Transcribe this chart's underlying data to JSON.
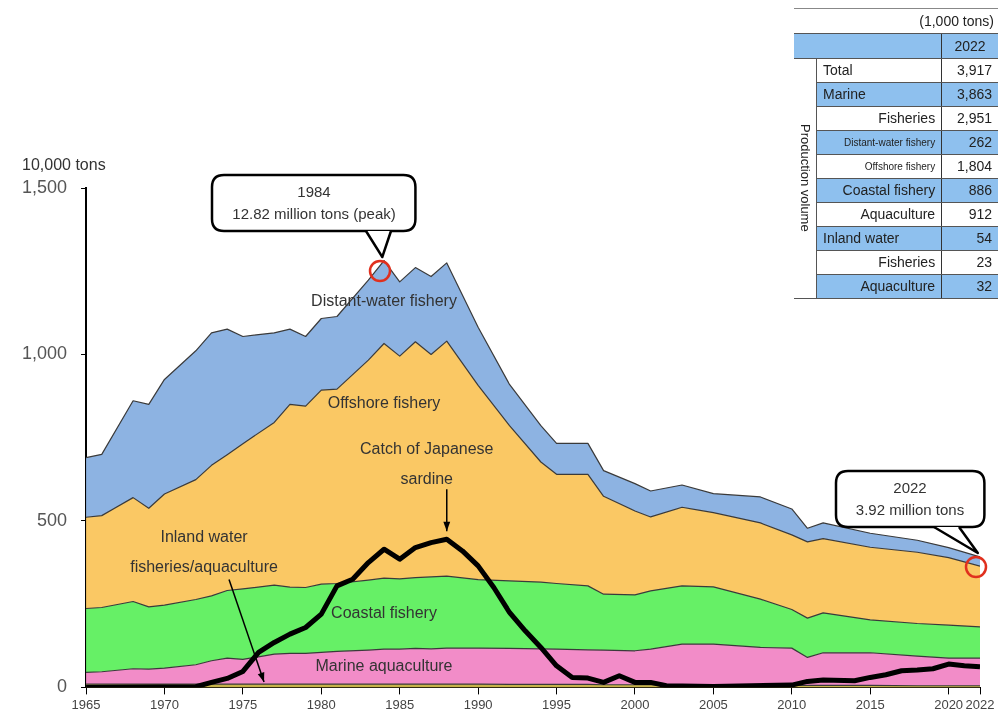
{
  "chart_data": [
    {
      "type": "area",
      "stacked": true,
      "ylabel": "10,000 tons",
      "marker": "none",
      "grid": false,
      "legend": false,
      "x": [
        1965,
        1966,
        1968,
        1969,
        1970,
        1972,
        1973,
        1974,
        1975,
        1977,
        1978,
        1979,
        1980,
        1981,
        1983,
        1984,
        1985,
        1986,
        1987,
        1988,
        1990,
        1992,
        1994,
        1995,
        1997,
        1998,
        2000,
        2001,
        2003,
        2005,
        2008,
        2010,
        2011,
        2012,
        2015,
        2018,
        2020,
        2022
      ],
      "xlim": [
        1965,
        2022
      ],
      "xticks": [
        1965,
        1970,
        1975,
        1980,
        1985,
        1990,
        1995,
        2000,
        2005,
        2010,
        2015,
        2020,
        2022
      ],
      "ylim": [
        0,
        1500
      ],
      "yticks": [
        0,
        500,
        {
          "value": 1000,
          "label": "1,000"
        },
        {
          "value": 1500,
          "label": "1,500"
        }
      ],
      "series": [
        {
          "name": "Inland water fisheries/aquaculture",
          "color": "#c8b44a",
          "values": [
            10,
            10,
            10,
            10,
            10,
            10,
            10,
            10,
            10,
            10,
            10,
            10,
            10,
            10,
            10,
            10,
            10,
            10,
            10,
            10,
            10,
            9,
            9,
            9,
            9,
            8,
            8,
            8,
            7,
            7,
            7,
            6,
            6,
            6,
            6,
            5,
            5,
            5
          ]
        },
        {
          "name": "Marine aquaculture",
          "color": "#f28cc8",
          "values": [
            35,
            37,
            46,
            45,
            48,
            58,
            70,
            78,
            74,
            90,
            92,
            92,
            95,
            98,
            102,
            105,
            105,
            107,
            106,
            108,
            108,
            108,
            107,
            106,
            104,
            104,
            102,
            107,
            123,
            123,
            113,
            112,
            84,
            98,
            98,
            89,
            83,
            83
          ]
        },
        {
          "name": "Coastal fishery",
          "color": "#66f066",
          "values": [
            192,
            193,
            202,
            187,
            189,
            196,
            195,
            203,
            212,
            207,
            199,
            198,
            205,
            204,
            210,
            213,
            211,
            213,
            216,
            216,
            206,
            203,
            200,
            197,
            192,
            168,
            168,
            175,
            175,
            172,
            145,
            116,
            118,
            120,
            99,
            98,
            99,
            94
          ]
        },
        {
          "name": "Offshore fishery",
          "color": "#fac864",
          "values": [
            274,
            276,
            312,
            296,
            334,
            360,
            392,
            408,
            436,
            489,
            549,
            545,
            583,
            584,
            661,
            705,
            669,
            708,
            668,
            706,
            583,
            466,
            361,
            328,
            335,
            294,
            252,
            222,
            236,
            223,
            229,
            224,
            229,
            223,
            218,
            214,
            203,
            182
          ]
        },
        {
          "name": "Distant-water fishery",
          "color": "#8db3e2",
          "values": [
            179,
            184,
            291,
            312,
            344,
            387,
            398,
            377,
            322,
            269,
            226,
            209,
            215,
            218,
            240,
            249,
            223,
            223,
            234,
            235,
            175,
            124,
            109,
            93,
            93,
            77,
            82,
            78,
            67,
            57,
            78,
            78,
            41,
            47,
            42,
            36,
            30,
            28
          ]
        },
        {
          "name": "Catch of Japanese sardine",
          "type": "line",
          "color": "#000000",
          "x": [
            1965,
            1972,
            1973,
            1974,
            1975,
            1976,
            1977,
            1978,
            1979,
            1980,
            1981,
            1982,
            1983,
            1984,
            1985,
            1986,
            1987,
            1988,
            1989,
            1990,
            1991,
            1992,
            1993,
            1994,
            1995,
            1996,
            1997,
            1998,
            1999,
            2000,
            2001,
            2002,
            2005,
            2010,
            2011,
            2012,
            2014,
            2015,
            2016,
            2017,
            2018,
            2019,
            2020,
            2021,
            2022
          ],
          "values": [
            0,
            2,
            15,
            27,
            48,
            105,
            135,
            160,
            180,
            220,
            305,
            325,
            375,
            415,
            385,
            420,
            435,
            445,
            410,
            365,
            300,
            225,
            170,
            120,
            65,
            30,
            28,
            15,
            35,
            15,
            15,
            5,
            3,
            7,
            18,
            22,
            20,
            30,
            38,
            50,
            52,
            56,
            70,
            65,
            62
          ]
        }
      ],
      "annotations": [
        {
          "text": "1984\n12.82 million tons (peak)",
          "x": 1984,
          "y": 1282
        },
        {
          "text": "2022\n3.92 million tons",
          "x": 2022,
          "y": 392
        }
      ]
    },
    {
      "type": "other",
      "title": "(1,000 tons)",
      "ylabel": "Production volume",
      "categories": [
        "Total",
        "Marine",
        "Fisheries",
        "Distant-water fishery",
        "Offshore fishery",
        "Coastal fishery",
        "Aquaculture",
        "Inland water",
        "Fisheries",
        "Aquaculture"
      ],
      "series": [
        {
          "name": "2022",
          "values": [
            3917,
            3863,
            2951,
            262,
            1804,
            886,
            912,
            54,
            23,
            32
          ],
          "value_labels": [
            "3,917",
            "3,863",
            "2,951",
            "262",
            "1,804",
            "886",
            "912",
            "54",
            "23",
            "32"
          ]
        }
      ]
    }
  ]
}
